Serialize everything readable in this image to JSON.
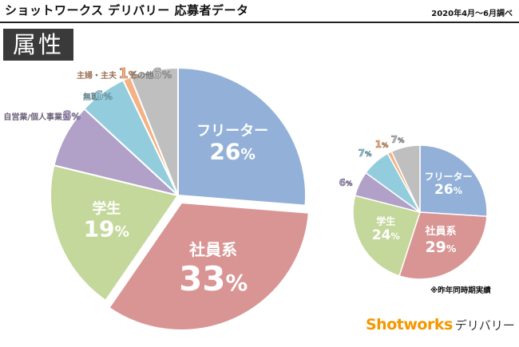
{
  "header": {
    "title": "ショットワークス デリバリー 応募者データ",
    "period": "2020年4月～6月調べ",
    "section_badge": "属性"
  },
  "note": "※昨年同時期実績",
  "brand": {
    "main": "Shotworks",
    "sub": "デリバリー"
  },
  "chart_data": [
    {
      "type": "pie",
      "title": "",
      "unit": "%",
      "slices": [
        {
          "label": "フリーター",
          "value": 26,
          "color": "#93b1d8"
        },
        {
          "label": "社員系",
          "value": 33,
          "color": "#d99594",
          "exploded": true
        },
        {
          "label": "学生",
          "value": 19,
          "color": "#c4d89b"
        },
        {
          "label": "自営業/個人事業主",
          "value": 8,
          "color": "#b1a0c7"
        },
        {
          "label": "無職",
          "value": 6,
          "color": "#93cddd"
        },
        {
          "label": "主婦・主夫",
          "value": 1,
          "color": "#f5b183"
        },
        {
          "label": "その他",
          "value": 6,
          "color": "#bfbfbf"
        }
      ]
    },
    {
      "type": "pie",
      "title": "",
      "unit": "%",
      "slices": [
        {
          "label": "フリーター",
          "value": 26,
          "color": "#93b1d8"
        },
        {
          "label": "社員系",
          "value": 29,
          "color": "#d99594"
        },
        {
          "label": "学生",
          "value": 24,
          "color": "#c4d89b"
        },
        {
          "label": "",
          "value": 6,
          "color": "#b1a0c7"
        },
        {
          "label": "",
          "value": 7,
          "color": "#93cddd"
        },
        {
          "label": "",
          "value": 1,
          "color": "#f5b183"
        },
        {
          "label": "",
          "value": 7,
          "color": "#bfbfbf"
        }
      ]
    }
  ]
}
